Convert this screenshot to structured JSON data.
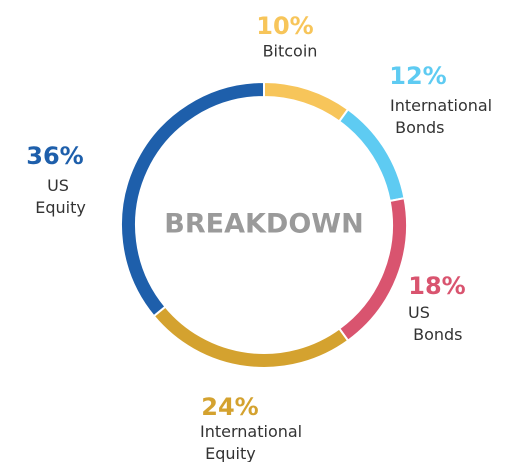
{
  "chart_data": {
    "type": "donut",
    "center_label": "BREAKDOWN",
    "categories": [
      "Bitcoin",
      "International Bonds",
      "US Bonds",
      "International Equity",
      "US Equity"
    ],
    "values": [
      10,
      12,
      18,
      24,
      36
    ],
    "value_labels": [
      "10%",
      "12%",
      "18%",
      "24%",
      "36%"
    ],
    "colors": [
      "#f7c55a",
      "#5ecbf2",
      "#d9546f",
      "#d4a22f",
      "#1e5fab"
    ]
  }
}
